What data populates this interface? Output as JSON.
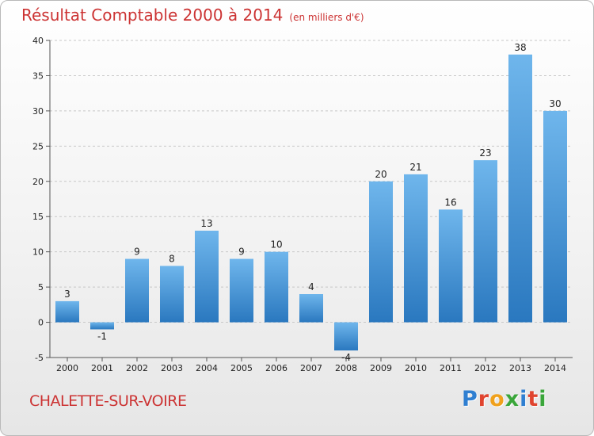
{
  "header": {
    "title": "Résultat Comptable 2000 à 2014",
    "subtitle": "(en milliers d'€)"
  },
  "footer": {
    "commune": "CHALETTE-SUR-VOIRE",
    "logo_letters": [
      {
        "char": "P",
        "color": "#2f7fd1"
      },
      {
        "char": "r",
        "color": "#e0442f"
      },
      {
        "char": "o",
        "color": "#f0a11c"
      },
      {
        "char": "x",
        "color": "#3aa63a"
      },
      {
        "char": "i",
        "color": "#2f7fd1"
      },
      {
        "char": "t",
        "color": "#e0442f"
      },
      {
        "char": "i",
        "color": "#3aa63a"
      }
    ]
  },
  "colors": {
    "bar_light": "#6fb6ec",
    "bar_dark": "#2a78bf",
    "grid": "#c8c8c8",
    "accent": "#cc3333"
  },
  "chart_data": {
    "type": "bar",
    "title": "Résultat Comptable 2000 à 2014",
    "subtitle": "(en milliers d'€)",
    "categories": [
      "2000",
      "2001",
      "2002",
      "2003",
      "2004",
      "2005",
      "2006",
      "2007",
      "2008",
      "2009",
      "2010",
      "2011",
      "2012",
      "2013",
      "2014"
    ],
    "values": [
      3,
      -1,
      9,
      8,
      13,
      9,
      10,
      4,
      -4,
      20,
      21,
      16,
      23,
      38,
      30
    ],
    "ylim": [
      -5,
      40
    ],
    "yticks": [
      -5,
      0,
      5,
      10,
      15,
      20,
      25,
      30,
      35,
      40
    ],
    "grid": true,
    "xlabel": "",
    "ylabel": ""
  }
}
